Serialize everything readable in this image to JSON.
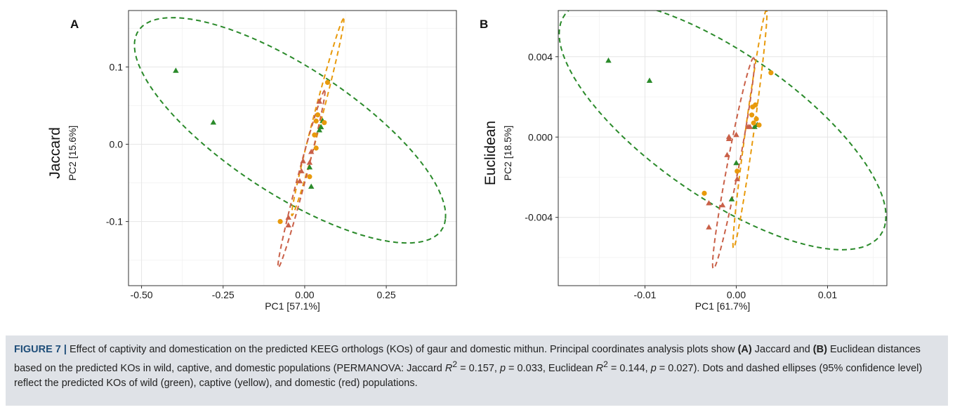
{
  "chart_data": [
    {
      "panel": "A",
      "type": "scatter",
      "row_label": "Jaccard",
      "xlabel": "PC1  [57.1%]",
      "ylabel": "PC2  [15.6%]",
      "xlim": [
        -0.54,
        0.465
      ],
      "ylim": [
        -0.183,
        0.173
      ],
      "x_ticks": [
        -0.5,
        -0.25,
        0.0,
        0.25
      ],
      "x_tick_labels": [
        "-0.50",
        "-0.25",
        "0.00",
        "0.25"
      ],
      "y_ticks": [
        -0.1,
        0.0,
        0.1
      ],
      "y_tick_labels": [
        "-0.1",
        "0.0",
        "0.1"
      ],
      "x_minor": [
        -0.375,
        -0.125,
        0.125,
        0.375
      ],
      "y_minor": [
        -0.15,
        -0.05,
        0.05,
        0.15
      ],
      "grid": true,
      "series": [
        {
          "group": "wild",
          "color": "#2a8a2a",
          "marker": "triangle",
          "points": [
            [
              -0.395,
              0.095
            ],
            [
              -0.28,
              0.028
            ],
            [
              0.055,
              0.03
            ],
            [
              0.05,
              0.022
            ],
            [
              0.045,
              0.018
            ],
            [
              0.015,
              -0.03
            ],
            [
              0.02,
              -0.055
            ]
          ]
        },
        {
          "group": "captive",
          "color": "#e89a0c",
          "marker": "circle",
          "points": [
            [
              0.07,
              0.08
            ],
            [
              0.04,
              0.038
            ],
            [
              0.035,
              0.03
            ],
            [
              0.06,
              0.028
            ],
            [
              0.03,
              0.012
            ],
            [
              0.035,
              -0.005
            ],
            [
              0.015,
              -0.042
            ],
            [
              -0.075,
              -0.1
            ]
          ]
        },
        {
          "group": "domestic",
          "color": "#c96048",
          "marker": "triangle",
          "points": [
            [
              0.045,
              0.055
            ],
            [
              0.02,
              -0.01
            ],
            [
              -0.005,
              -0.022
            ],
            [
              0.015,
              -0.024
            ],
            [
              -0.01,
              -0.035
            ],
            [
              -0.015,
              -0.048
            ],
            [
              -0.05,
              -0.095
            ],
            [
              -0.05,
              -0.105
            ]
          ]
        }
      ],
      "ellipses": [
        {
          "group": "wild",
          "color": "#2a8a2a",
          "cx": -0.045,
          "cy": 0.018,
          "a": 0.49,
          "b": 0.093,
          "angle": -13.5
        },
        {
          "group": "captive",
          "color": "#e89a0c",
          "cx": 0.04,
          "cy": 0.035,
          "a": 0.15,
          "b": 0.011,
          "angle": 58
        },
        {
          "group": "domestic",
          "color": "#c96048",
          "cx": -0.01,
          "cy": -0.045,
          "a": 0.135,
          "b": 0.011,
          "angle": 58
        }
      ]
    },
    {
      "panel": "B",
      "type": "scatter",
      "row_label": "Euclidean",
      "xlabel": "PC1  [61.7%]",
      "ylabel": "PC2  [18.5%]",
      "xlim": [
        -0.0195,
        0.0165
      ],
      "ylim": [
        -0.0074,
        0.0063
      ],
      "x_ticks": [
        -0.01,
        0.0,
        0.01
      ],
      "x_tick_labels": [
        "-0.01",
        "0.00",
        "0.01"
      ],
      "y_ticks": [
        -0.004,
        0.0,
        0.004
      ],
      "y_tick_labels": [
        "-0.004",
        "0.000",
        "0.004"
      ],
      "x_minor": [
        -0.015,
        -0.005,
        0.005,
        0.015
      ],
      "y_minor": [
        -0.006,
        -0.002,
        0.002,
        0.006
      ],
      "grid": true,
      "series": [
        {
          "group": "wild",
          "color": "#2a8a2a",
          "marker": "triangle",
          "points": [
            [
              -0.014,
              0.0038
            ],
            [
              -0.0095,
              0.0028
            ],
            [
              0.002,
              0.0005
            ],
            [
              0.0023,
              0.0006
            ],
            [
              0.0,
              -0.0013
            ],
            [
              -0.0005,
              -0.0031
            ]
          ]
        },
        {
          "group": "captive",
          "color": "#e89a0c",
          "marker": "circle",
          "points": [
            [
              0.0038,
              0.0032
            ],
            [
              0.0021,
              0.0016
            ],
            [
              0.0018,
              0.0015
            ],
            [
              0.0017,
              0.0011
            ],
            [
              0.0019,
              0.0007
            ],
            [
              0.0022,
              0.0009
            ],
            [
              0.0025,
              0.0006
            ],
            [
              0.0001,
              -0.0017
            ],
            [
              -0.0035,
              -0.0028
            ]
          ]
        },
        {
          "group": "domestic",
          "color": "#c96048",
          "marker": "triangle",
          "points": [
            [
              0.0015,
              0.0005
            ],
            [
              0.0013,
              0.0005
            ],
            [
              0.0,
              0.0001
            ],
            [
              -0.0008,
              0.0
            ],
            [
              -0.0008,
              -0.0001
            ],
            [
              -0.001,
              -0.0009
            ],
            [
              0.0001,
              -0.0021
            ],
            [
              -0.0015,
              -0.0034
            ],
            [
              -0.003,
              -0.0033
            ],
            [
              -0.003,
              -0.0045
            ]
          ]
        }
      ],
      "ellipses": [
        {
          "group": "wild",
          "color": "#2a8a2a",
          "cx": -0.0015,
          "cy": 0.0006,
          "a": 0.0185,
          "b": 0.0041,
          "angle": -15
        },
        {
          "group": "captive",
          "color": "#e89a0c",
          "cx": 0.0015,
          "cy": 0.0004,
          "a": 0.0062,
          "b": 0.00045,
          "angle": 73
        },
        {
          "group": "domestic",
          "color": "#c96048",
          "cx": -0.0003,
          "cy": -0.0013,
          "a": 0.0057,
          "b": 0.0006,
          "angle": 67
        }
      ]
    }
  ],
  "caption": {
    "label": "FIGURE 7 |",
    "s1": " Effect of captivity and domestication on the predicted KEEG orthologs (KOs) of gaur and domestic mithun. Principal coordinates analysis plots show ",
    "tagA": "(A)",
    "s2": " Jaccard and ",
    "tagB": "(B)",
    "s3": " Euclidean distances based on the predicted KOs in wild, captive, and domestic populations (PERMANOVA: Jaccard ",
    "r": "R",
    "sup1": "2",
    "s4": " = 0.157, ",
    "p": "p",
    "s5": " = 0.033, Euclidean ",
    "r2": "R",
    "sup2": "2",
    "s6": " = 0.144, ",
    "p2": "p",
    "s7": " = 0.027). Dots and dashed ellipses (95% confidence level) reflect the predicted KOs of wild (green), captive (yellow), and domestic (red) populations."
  }
}
